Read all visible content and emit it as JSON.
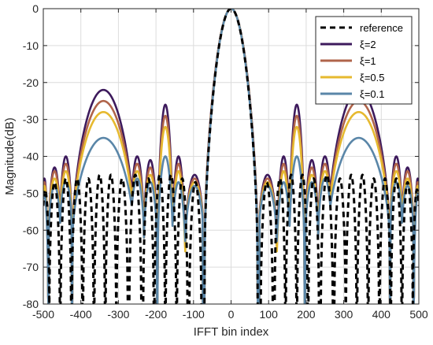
{
  "chart_data": {
    "type": "line",
    "title": "",
    "xlabel": "IFFT bin index",
    "ylabel": "Magnitude(dB)",
    "xlim": [
      -500,
      500
    ],
    "ylim": [
      -80,
      0
    ],
    "xticks": [
      -500,
      -400,
      -300,
      -200,
      -100,
      0,
      100,
      200,
      300,
      400,
      500
    ],
    "yticks": [
      0,
      -10,
      -20,
      -30,
      -40,
      -50,
      -60,
      -70,
      -80
    ],
    "grid": true,
    "legend_position": "top-right",
    "mainlobe_halfwidth": 70,
    "series": [
      {
        "name": "reference",
        "color": "#000000",
        "dashed": true,
        "main_floor": -65,
        "sidelobes": [
          {
            "center": 95,
            "peak": -47,
            "halfwidth": 16,
            "null": -80
          },
          {
            "center": 130,
            "peak": -46,
            "halfwidth": 14,
            "null": -80
          },
          {
            "center": 160,
            "peak": -45,
            "halfwidth": 14,
            "null": -80
          },
          {
            "center": 190,
            "peak": -45,
            "halfwidth": 14,
            "null": -80
          },
          {
            "center": 220,
            "peak": -46,
            "halfwidth": 14,
            "null": -80
          },
          {
            "center": 255,
            "peak": -45,
            "halfwidth": 16,
            "null": -80
          },
          {
            "center": 290,
            "peak": -46,
            "halfwidth": 15,
            "null": -80
          },
          {
            "center": 320,
            "peak": -45,
            "halfwidth": 14,
            "null": -80
          },
          {
            "center": 350,
            "peak": -45,
            "halfwidth": 14,
            "null": -80
          },
          {
            "center": 380,
            "peak": -46,
            "halfwidth": 14,
            "null": -80
          },
          {
            "center": 410,
            "peak": -46,
            "halfwidth": 14,
            "null": -80
          },
          {
            "center": 440,
            "peak": -46,
            "halfwidth": 14,
            "null": -80
          },
          {
            "center": 470,
            "peak": -47,
            "halfwidth": 14,
            "null": -80
          },
          {
            "center": 495,
            "peak": -49,
            "halfwidth": 11,
            "null": -80
          }
        ]
      },
      {
        "name": "ξ=2",
        "color": "#3d1a5c",
        "dashed": false,
        "main_floor": -62,
        "sidelobes": [
          {
            "center": 97,
            "peak": -45,
            "halfwidth": 24,
            "null": -62
          },
          {
            "center": 140,
            "peak": -40,
            "halfwidth": 20,
            "null": -78
          },
          {
            "center": 175,
            "peak": -26,
            "halfwidth": 20,
            "null": -65
          },
          {
            "center": 215,
            "peak": -41,
            "halfwidth": 17,
            "null": -62
          },
          {
            "center": 250,
            "peak": -40,
            "halfwidth": 18,
            "null": -62
          },
          {
            "center": 340,
            "peak": -22,
            "halfwidth": 82,
            "null": -62
          },
          {
            "center": 440,
            "peak": -40,
            "halfwidth": 15,
            "null": -58
          },
          {
            "center": 470,
            "peak": -43,
            "halfwidth": 15,
            "null": -60
          },
          {
            "center": 497,
            "peak": -46,
            "halfwidth": 10,
            "null": -78
          }
        ]
      },
      {
        "name": "ξ=1",
        "color": "#b0644a",
        "dashed": false,
        "main_floor": -63,
        "sidelobes": [
          {
            "center": 97,
            "peak": -46,
            "halfwidth": 24,
            "null": -62
          },
          {
            "center": 140,
            "peak": -42,
            "halfwidth": 20,
            "null": -78
          },
          {
            "center": 175,
            "peak": -29,
            "halfwidth": 20,
            "null": -65
          },
          {
            "center": 215,
            "peak": -43,
            "halfwidth": 17,
            "null": -62
          },
          {
            "center": 250,
            "peak": -42,
            "halfwidth": 18,
            "null": -62
          },
          {
            "center": 340,
            "peak": -25,
            "halfwidth": 82,
            "null": -62
          },
          {
            "center": 440,
            "peak": -42,
            "halfwidth": 15,
            "null": -58
          },
          {
            "center": 470,
            "peak": -44,
            "halfwidth": 15,
            "null": -60
          },
          {
            "center": 497,
            "peak": -47,
            "halfwidth": 10,
            "null": -78
          }
        ]
      },
      {
        "name": "ξ=0.5",
        "color": "#e6b92f",
        "dashed": false,
        "main_floor": -64,
        "sidelobes": [
          {
            "center": 97,
            "peak": -47,
            "halfwidth": 24,
            "null": -62
          },
          {
            "center": 140,
            "peak": -44,
            "halfwidth": 20,
            "null": -78
          },
          {
            "center": 175,
            "peak": -32,
            "halfwidth": 20,
            "null": -65
          },
          {
            "center": 215,
            "peak": -45,
            "halfwidth": 17,
            "null": -62
          },
          {
            "center": 250,
            "peak": -44,
            "halfwidth": 18,
            "null": -62
          },
          {
            "center": 340,
            "peak": -28,
            "halfwidth": 82,
            "null": -62
          },
          {
            "center": 440,
            "peak": -44,
            "halfwidth": 15,
            "null": -58
          },
          {
            "center": 470,
            "peak": -46,
            "halfwidth": 15,
            "null": -60
          },
          {
            "center": 497,
            "peak": -48,
            "halfwidth": 10,
            "null": -78
          }
        ]
      },
      {
        "name": "ξ=0.1",
        "color": "#5a86a8",
        "dashed": false,
        "main_floor": -65,
        "sidelobes": [
          {
            "center": 97,
            "peak": -48,
            "halfwidth": 24,
            "null": -62
          },
          {
            "center": 140,
            "peak": -47,
            "halfwidth": 20,
            "null": -72
          },
          {
            "center": 175,
            "peak": -40,
            "halfwidth": 20,
            "null": -65
          },
          {
            "center": 215,
            "peak": -47,
            "halfwidth": 17,
            "null": -62
          },
          {
            "center": 250,
            "peak": -46,
            "halfwidth": 18,
            "null": -62
          },
          {
            "center": 340,
            "peak": -35,
            "halfwidth": 82,
            "null": -62
          },
          {
            "center": 440,
            "peak": -47,
            "halfwidth": 15,
            "null": -58
          },
          {
            "center": 470,
            "peak": -48,
            "halfwidth": 15,
            "null": -60
          },
          {
            "center": 497,
            "peak": -50,
            "halfwidth": 10,
            "null": -78
          }
        ]
      }
    ]
  }
}
